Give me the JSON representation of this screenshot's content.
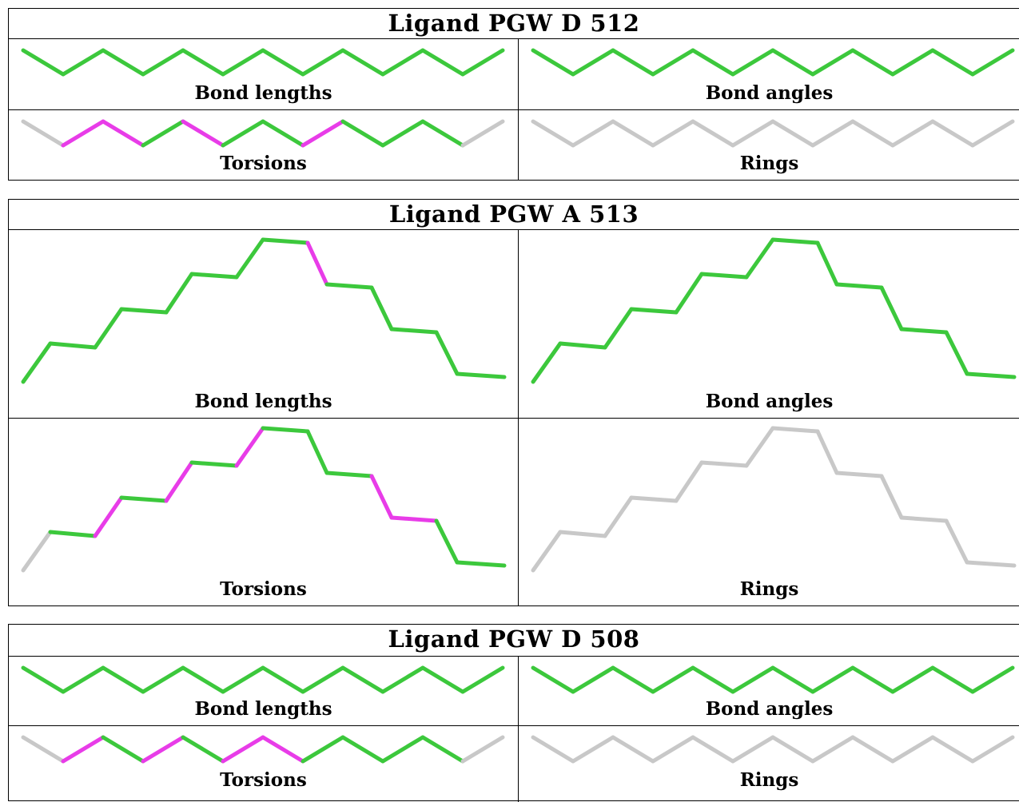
{
  "colors": {
    "ok": "#3cc83c",
    "outlier": "#e83ce8",
    "na": "#c8c8c8"
  },
  "blocks": [
    {
      "title": "Ligand PGW D 512",
      "panels": [
        {
          "caption": "Bond lengths",
          "colors": [
            "ok",
            "ok",
            "ok",
            "ok",
            "ok",
            "ok",
            "ok",
            "ok",
            "ok",
            "ok",
            "ok",
            "ok"
          ]
        },
        {
          "caption": "Bond angles",
          "colors": [
            "ok",
            "ok",
            "ok",
            "ok",
            "ok",
            "ok",
            "ok",
            "ok",
            "ok",
            "ok",
            "ok",
            "ok"
          ]
        },
        {
          "caption": "Torsions",
          "colors": [
            "na",
            "outlier",
            "outlier",
            "ok",
            "outlier",
            "ok",
            "ok",
            "outlier",
            "ok",
            "ok",
            "ok",
            "na"
          ]
        },
        {
          "caption": "Rings",
          "colors": [
            "na",
            "na",
            "na",
            "na",
            "na",
            "na",
            "na",
            "na",
            "na",
            "na",
            "na",
            "na"
          ]
        }
      ]
    },
    {
      "title": "Ligand PGW A 513",
      "panels": [
        {
          "caption": "Bond lengths",
          "colors": [
            "ok",
            "ok",
            "ok",
            "ok",
            "ok",
            "ok",
            "ok",
            "ok",
            "outlier",
            "ok",
            "ok",
            "ok",
            "ok",
            "ok",
            "ok",
            "ok",
            "ok",
            "ok"
          ]
        },
        {
          "caption": "Bond angles",
          "colors": [
            "ok",
            "ok",
            "ok",
            "ok",
            "ok",
            "ok",
            "ok",
            "ok",
            "ok",
            "ok",
            "ok",
            "ok",
            "ok",
            "ok",
            "ok",
            "ok",
            "ok",
            "ok"
          ]
        },
        {
          "caption": "Torsions",
          "colors": [
            "na",
            "ok",
            "outlier",
            "ok",
            "outlier",
            "ok",
            "outlier",
            "ok",
            "ok",
            "ok",
            "outlier",
            "outlier",
            "ok",
            "ok",
            "ok",
            "ok",
            "na"
          ]
        },
        {
          "caption": "Rings",
          "colors": [
            "na",
            "na",
            "na",
            "na",
            "na",
            "na",
            "na",
            "na",
            "na",
            "na",
            "na",
            "na",
            "na",
            "na",
            "na",
            "na",
            "na",
            "na"
          ]
        }
      ]
    },
    {
      "title": "Ligand PGW D 508",
      "panels": [
        {
          "caption": "Bond lengths",
          "colors": [
            "ok",
            "ok",
            "ok",
            "ok",
            "ok",
            "ok",
            "ok",
            "ok",
            "ok",
            "ok",
            "ok",
            "ok"
          ]
        },
        {
          "caption": "Bond angles",
          "colors": [
            "ok",
            "ok",
            "ok",
            "ok",
            "ok",
            "ok",
            "ok",
            "ok",
            "ok",
            "ok",
            "ok",
            "ok"
          ]
        },
        {
          "caption": "Torsions",
          "colors": [
            "na",
            "outlier",
            "ok",
            "outlier",
            "ok",
            "outlier",
            "outlier",
            "ok",
            "ok",
            "ok",
            "ok",
            "na"
          ]
        },
        {
          "caption": "Rings",
          "colors": [
            "na",
            "na",
            "na",
            "na",
            "na",
            "na",
            "na",
            "na",
            "na",
            "na",
            "na",
            "na"
          ]
        }
      ]
    }
  ]
}
